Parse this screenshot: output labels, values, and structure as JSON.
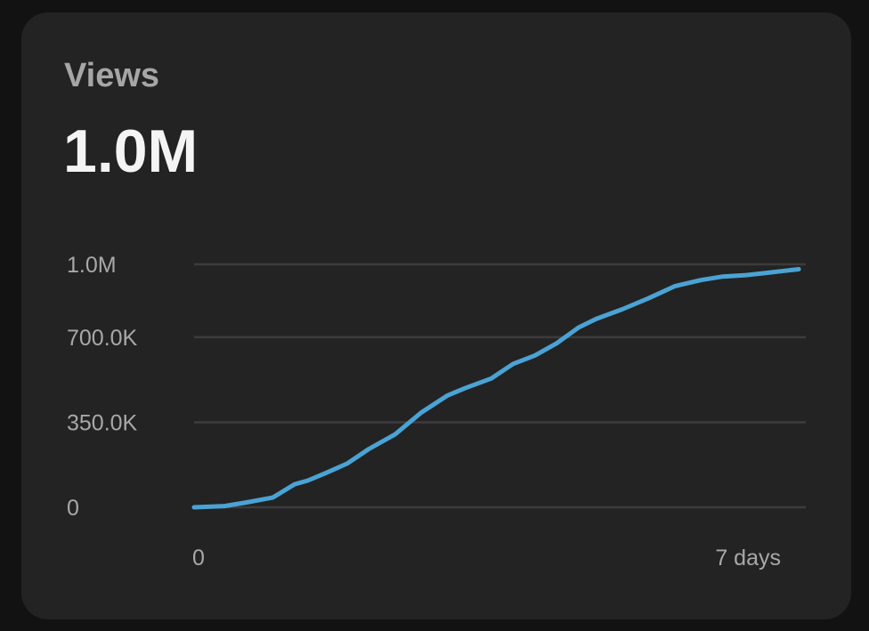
{
  "card": {
    "metric_label": "Views",
    "metric_value": "1.0M"
  },
  "colors": {
    "background": "#121212",
    "card": "#232323",
    "gridline": "#3c3c3c",
    "series": "#4aa3d4",
    "label": "#a8a8a8",
    "value": "#f4f4f4"
  },
  "chart_data": {
    "type": "line",
    "title": "",
    "xlabel": "",
    "ylabel": "",
    "x_unit": "days",
    "xlim": [
      0,
      7
    ],
    "ylim": [
      0,
      1000000
    ],
    "grid": true,
    "y_ticks": [
      {
        "value": 0,
        "label": "0"
      },
      {
        "value": 350000,
        "label": "350.0K"
      },
      {
        "value": 700000,
        "label": "700.0K"
      },
      {
        "value": 1000000,
        "label": "1.0M"
      }
    ],
    "x_ticks": [
      {
        "value": 0,
        "label": "0"
      },
      {
        "value": 7,
        "label": "7 days"
      }
    ],
    "series": [
      {
        "x": [
          0,
          0.35,
          0.6,
          0.9,
          1.15,
          1.3,
          1.5,
          1.75,
          2.0,
          2.3,
          2.6,
          2.9,
          3.1,
          3.4,
          3.65,
          3.9,
          4.15,
          4.4,
          4.6,
          4.9,
          5.2,
          5.5,
          5.8,
          6.05,
          6.3,
          6.55,
          6.8,
          6.92
        ],
        "y": [
          0,
          5000,
          20000,
          40000,
          95000,
          110000,
          140000,
          180000,
          240000,
          300000,
          390000,
          460000,
          490000,
          530000,
          590000,
          625000,
          675000,
          740000,
          775000,
          815000,
          860000,
          910000,
          935000,
          950000,
          955000,
          965000,
          975000,
          980000
        ]
      }
    ]
  }
}
